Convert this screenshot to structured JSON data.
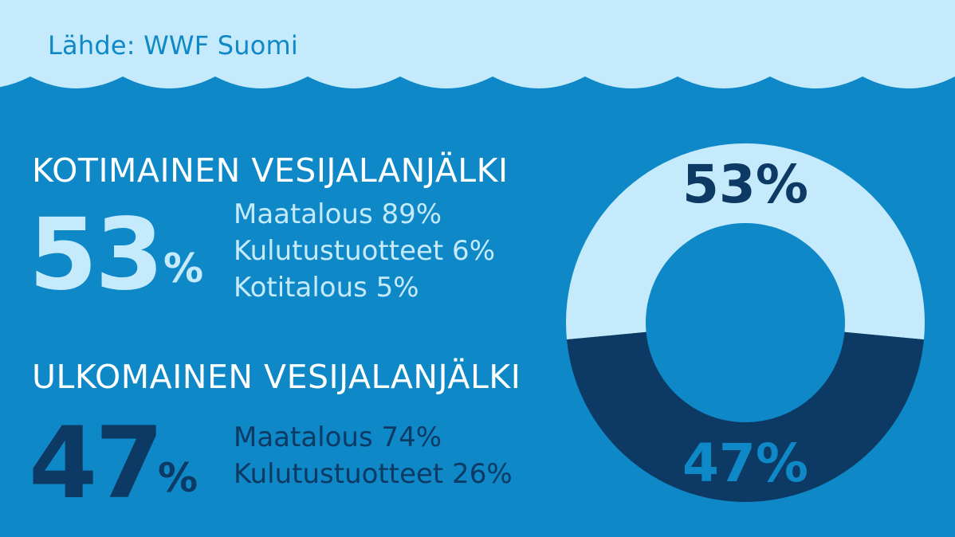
{
  "source": "Lähde: WWF Suomi",
  "sections": [
    {
      "heading": "KOTIMAINEN VESIJALANJÄLKI",
      "value": "53",
      "unit": "%",
      "items": [
        "Maatalous 89%",
        "Kulutustuotteet 6%",
        "Kotitalous 5%"
      ]
    },
    {
      "heading": "ULKOMAINEN VESIJALANJÄLKI",
      "value": "47",
      "unit": "%",
      "items": [
        "Maatalous 74%",
        "Kulutustuotteet 26%"
      ]
    }
  ],
  "colors": {
    "background": "#0e88c6",
    "light": "#c5eafb",
    "dark": "#0d3a64"
  },
  "chart_data": {
    "type": "pie",
    "categories": [
      "KOTIMAINEN VESIJALANJÄLKI",
      "ULKOMAINEN VESIJALANJÄLKI"
    ],
    "values": [
      53,
      47
    ],
    "labels": [
      "53%",
      "47%"
    ],
    "colors": [
      "#c5eafb",
      "#0d3a64"
    ],
    "donut": true
  }
}
